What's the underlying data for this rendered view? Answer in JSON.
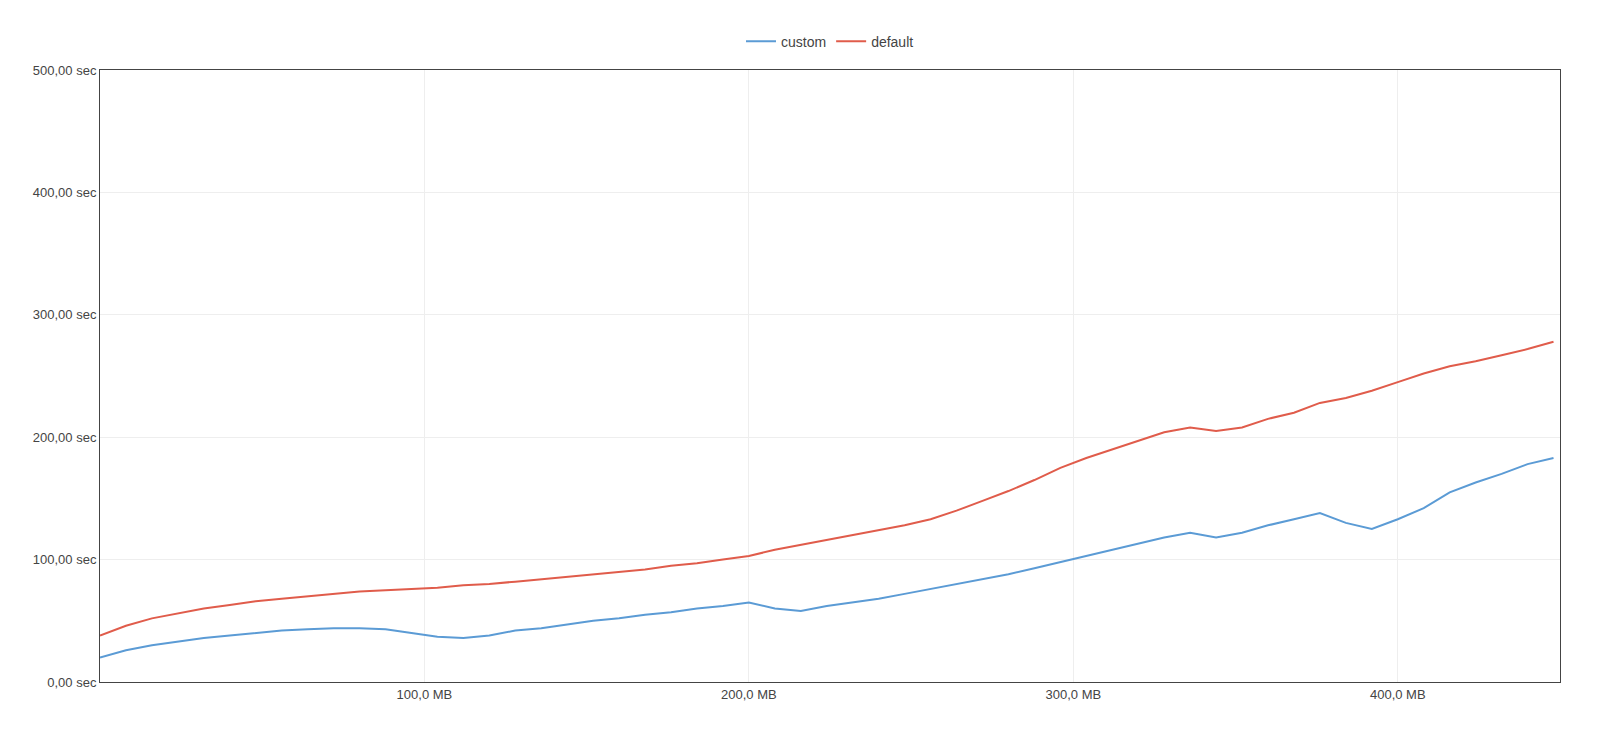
{
  "chart_data": {
    "type": "line",
    "x": [
      0,
      8,
      16,
      24,
      32,
      40,
      48,
      56,
      64,
      72,
      80,
      88,
      96,
      104,
      112,
      120,
      128,
      136,
      144,
      152,
      160,
      168,
      176,
      184,
      192,
      200,
      208,
      216,
      224,
      232,
      240,
      248,
      256,
      264,
      272,
      280,
      288,
      296,
      304,
      312,
      320,
      328,
      336,
      344,
      352,
      360,
      368,
      376,
      384,
      392,
      400,
      408,
      416,
      424,
      432,
      440,
      448
    ],
    "series": [
      {
        "name": "custom",
        "color": "#5b9bd5",
        "values": [
          20,
          26,
          30,
          33,
          36,
          38,
          40,
          42,
          43,
          44,
          44,
          43,
          40,
          37,
          36,
          38,
          42,
          44,
          47,
          50,
          52,
          55,
          57,
          60,
          62,
          65,
          60,
          58,
          62,
          65,
          68,
          72,
          76,
          80,
          84,
          88,
          93,
          98,
          103,
          108,
          113,
          118,
          122,
          118,
          122,
          128,
          133,
          138,
          130,
          125,
          133,
          142,
          155,
          163,
          170,
          178,
          183
        ]
      },
      {
        "name": "default",
        "color": "#e05c4b",
        "values": [
          38,
          46,
          52,
          56,
          60,
          63,
          66,
          68,
          70,
          72,
          74,
          75,
          76,
          77,
          79,
          80,
          82,
          84,
          86,
          88,
          90,
          92,
          95,
          97,
          100,
          103,
          108,
          112,
          116,
          120,
          124,
          128,
          133,
          140,
          148,
          156,
          165,
          175,
          183,
          190,
          197,
          204,
          208,
          205,
          208,
          215,
          220,
          228,
          232,
          238,
          245,
          252,
          258,
          262,
          267,
          272,
          278
        ]
      }
    ],
    "xlim": [
      0,
      450
    ],
    "ylim": [
      0,
      500
    ],
    "xticks": [
      {
        "value": 100,
        "label": "100,0 MB"
      },
      {
        "value": 200,
        "label": "200,0 MB"
      },
      {
        "value": 300,
        "label": "300,0 MB"
      },
      {
        "value": 400,
        "label": "400,0 MB"
      }
    ],
    "yticks": [
      {
        "value": 0,
        "label": "0,00 sec"
      },
      {
        "value": 100,
        "label": "100,00 sec"
      },
      {
        "value": 200,
        "label": "200,00 sec"
      },
      {
        "value": 300,
        "label": "300,00 sec"
      },
      {
        "value": 400,
        "label": "400,00 sec"
      },
      {
        "value": 500,
        "label": "500,00 sec"
      }
    ],
    "grid": true,
    "legend": "top"
  }
}
